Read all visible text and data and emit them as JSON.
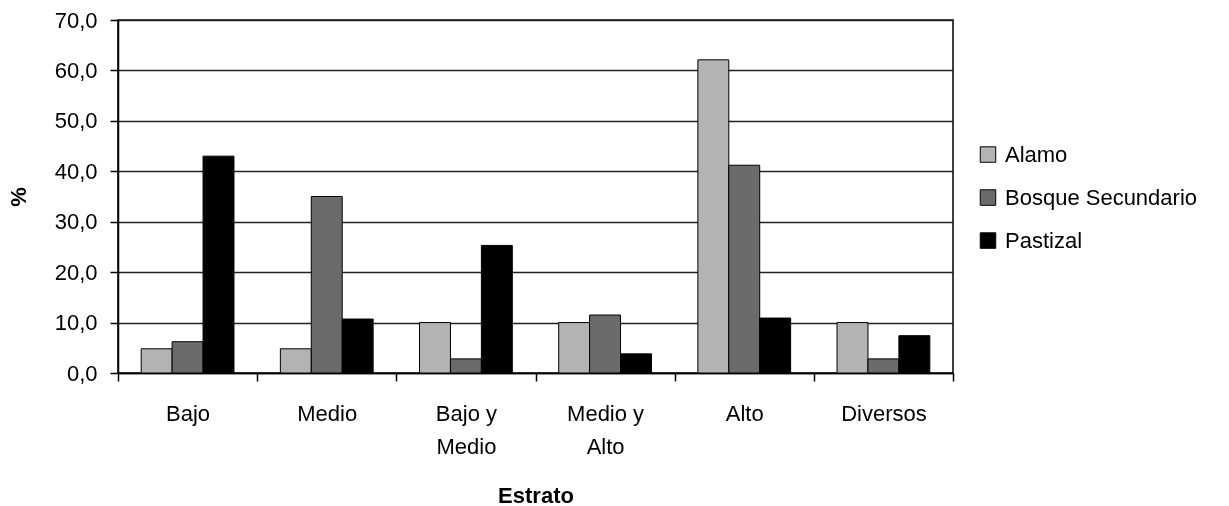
{
  "chart_data": {
    "type": "bar",
    "xlabel": "Estrato",
    "ylabel": "%",
    "categories": [
      "Bajo",
      "Medio",
      "Bajo y Medio",
      "Medio y Alto",
      "Alto",
      "Diversos"
    ],
    "series": [
      {
        "name": "Alamo",
        "color": "#b3b3b3",
        "values": [
          4.8,
          4.8,
          10.0,
          10.0,
          62.1,
          10.0
        ]
      },
      {
        "name": "Bosque Secundario",
        "color": "#6b6b6b",
        "values": [
          6.2,
          35.0,
          2.8,
          11.5,
          41.2,
          2.8
        ]
      },
      {
        "name": "Pastizal",
        "color": "#000000",
        "values": [
          43.0,
          10.7,
          25.3,
          3.8,
          10.9,
          7.4
        ]
      }
    ],
    "ylim": [
      0,
      70
    ],
    "yticks": [
      {
        "value": 0,
        "label": "0,0"
      },
      {
        "value": 10,
        "label": "10,0"
      },
      {
        "value": 20,
        "label": "20,0"
      },
      {
        "value": 30,
        "label": "30,0"
      },
      {
        "value": 40,
        "label": "40,0"
      },
      {
        "value": 50,
        "label": "50,0"
      },
      {
        "value": 60,
        "label": "60,0"
      },
      {
        "value": 70,
        "label": "70,0"
      }
    ],
    "grid": "y",
    "legend": "right"
  }
}
